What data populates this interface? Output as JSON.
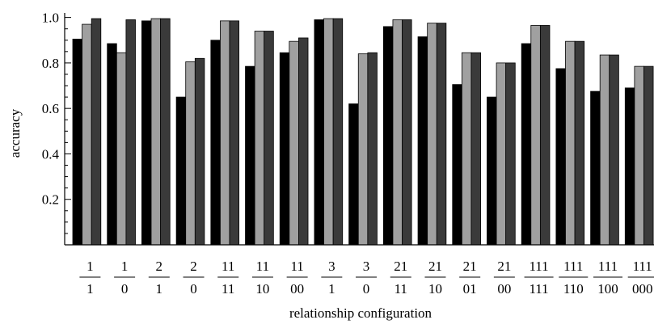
{
  "chart_data": {
    "type": "bar",
    "xlabel": "relationship configuration",
    "ylabel": "accuracy",
    "ylim": [
      0,
      1.02
    ],
    "yticks": [
      "0.2",
      "0.4",
      "0.6",
      "0.8",
      "1.0"
    ],
    "ytick_values": [
      0.2,
      0.4,
      0.6,
      0.8,
      1.0
    ],
    "grid": false,
    "categories": [
      {
        "top": "1",
        "bottom": "1"
      },
      {
        "top": "1",
        "bottom": "0"
      },
      {
        "top": "2",
        "bottom": "1"
      },
      {
        "top": "2",
        "bottom": "0"
      },
      {
        "top": "11",
        "bottom": "11"
      },
      {
        "top": "11",
        "bottom": "10"
      },
      {
        "top": "11",
        "bottom": "00"
      },
      {
        "top": "3",
        "bottom": "1"
      },
      {
        "top": "3",
        "bottom": "0"
      },
      {
        "top": "21",
        "bottom": "11"
      },
      {
        "top": "21",
        "bottom": "10"
      },
      {
        "top": "21",
        "bottom": "01"
      },
      {
        "top": "21",
        "bottom": "00"
      },
      {
        "top": "111",
        "bottom": "111"
      },
      {
        "top": "111",
        "bottom": "110"
      },
      {
        "top": "111",
        "bottom": "100"
      },
      {
        "top": "111",
        "bottom": "000"
      }
    ],
    "series": [
      {
        "color": "#000000",
        "values": [
          0.905,
          0.885,
          0.985,
          0.65,
          0.9,
          0.785,
          0.845,
          0.99,
          0.62,
          0.96,
          0.915,
          0.705,
          0.65,
          0.885,
          0.775,
          0.675,
          0.69
        ]
      },
      {
        "color": "#a0a0a0",
        "values": [
          0.97,
          0.845,
          0.995,
          0.805,
          0.985,
          0.94,
          0.895,
          0.995,
          0.84,
          0.99,
          0.975,
          0.845,
          0.8,
          0.965,
          0.895,
          0.835,
          0.785
        ]
      },
      {
        "color": "#3a3a3a",
        "values": [
          0.995,
          0.99,
          0.995,
          0.82,
          0.985,
          0.94,
          0.91,
          0.995,
          0.845,
          0.99,
          0.975,
          0.845,
          0.8,
          0.965,
          0.895,
          0.835,
          0.785
        ]
      }
    ]
  }
}
